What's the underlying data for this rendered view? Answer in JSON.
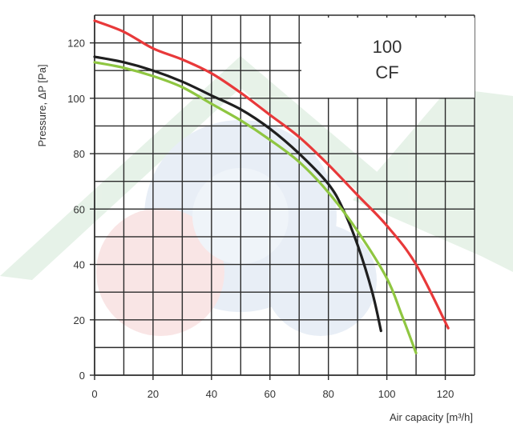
{
  "chart_data": {
    "type": "line",
    "title": "",
    "xlabel": "Air capacity [m³/h]",
    "ylabel": "Pressure, ΔP [Pa]",
    "xlim": [
      0,
      130
    ],
    "ylim": [
      0,
      130
    ],
    "x_ticks": [
      0,
      20,
      40,
      60,
      80,
      100,
      120
    ],
    "y_ticks": [
      0,
      20,
      40,
      60,
      80,
      100,
      120
    ],
    "grid": true,
    "legend_box": {
      "line1": "100",
      "line2": "CF",
      "placement": "top-right"
    },
    "series": [
      {
        "color": "#e8393a",
        "points": [
          [
            0,
            128
          ],
          [
            10,
            124
          ],
          [
            20,
            118
          ],
          [
            30,
            114
          ],
          [
            40,
            109
          ],
          [
            50,
            102
          ],
          [
            60,
            94
          ],
          [
            70,
            86
          ],
          [
            80,
            76
          ],
          [
            90,
            65
          ],
          [
            100,
            54
          ],
          [
            110,
            40
          ],
          [
            121,
            17
          ]
        ]
      },
      {
        "color": "#1f1f1f",
        "points": [
          [
            0,
            115
          ],
          [
            10,
            113
          ],
          [
            20,
            110
          ],
          [
            30,
            106
          ],
          [
            40,
            101
          ],
          [
            50,
            96
          ],
          [
            60,
            89
          ],
          [
            70,
            80
          ],
          [
            80,
            69
          ],
          [
            85,
            60
          ],
          [
            90,
            47
          ],
          [
            95,
            30
          ],
          [
            98,
            16
          ]
        ]
      },
      {
        "color": "#8fc641",
        "points": [
          [
            0,
            113
          ],
          [
            10,
            111
          ],
          [
            20,
            108
          ],
          [
            30,
            104
          ],
          [
            40,
            98
          ],
          [
            50,
            92
          ],
          [
            60,
            85
          ],
          [
            70,
            77
          ],
          [
            80,
            66
          ],
          [
            90,
            52
          ],
          [
            100,
            35
          ],
          [
            105,
            22
          ],
          [
            110,
            8
          ]
        ]
      }
    ]
  },
  "colors": {
    "grid": "#2b2b2b",
    "background": "#ffffff",
    "watermark_green": "#e4f1e6",
    "watermark_red": "#f9e3e3",
    "watermark_blue": "#e6edf6"
  }
}
